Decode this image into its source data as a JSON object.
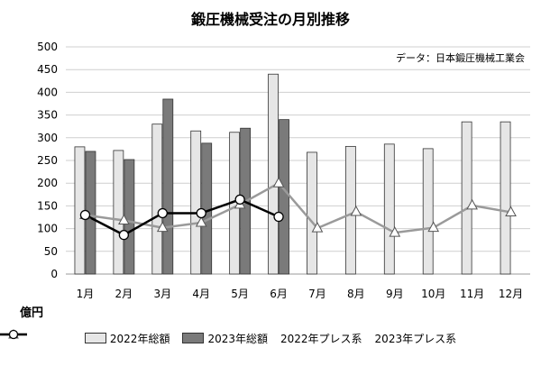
{
  "chart_data": {
    "type": "bar",
    "title": "鍛圧機械受注の月別推移",
    "source_note": "データ：日本鍛圧機械工業会",
    "unit_label": "億円",
    "categories": [
      "1月",
      "2月",
      "3月",
      "4月",
      "5月",
      "6月",
      "7月",
      "8月",
      "9月",
      "10月",
      "11月",
      "12月"
    ],
    "ylim": [
      0,
      500
    ],
    "yticks": [
      0,
      50,
      100,
      150,
      200,
      250,
      300,
      350,
      400,
      450,
      500
    ],
    "ytick_labels": [
      "0",
      "50",
      "100",
      "150",
      "200",
      "250",
      "300",
      "350",
      "400",
      "450",
      "500"
    ],
    "grid": true,
    "legend_position": "bottom",
    "series": [
      {
        "name": "2022年総額",
        "kind": "bar",
        "color": "#e6e6e6",
        "values": [
          280,
          272,
          330,
          315,
          312,
          440,
          268,
          281,
          286,
          276,
          335,
          335
        ]
      },
      {
        "name": "2023年総額",
        "kind": "bar",
        "color": "#7a7a7a",
        "values": [
          270,
          252,
          385,
          288,
          321,
          340,
          null,
          null,
          null,
          null,
          null,
          null
        ]
      },
      {
        "name": "2022年プレス系",
        "kind": "line",
        "color": "#9a9a9a",
        "marker": "triangle",
        "values": [
          130,
          118,
          102,
          113,
          153,
          200,
          101,
          137,
          91,
          102,
          151,
          136
        ]
      },
      {
        "name": "2023年プレス系",
        "kind": "line",
        "color": "#000000",
        "marker": "circle",
        "values": [
          130,
          86,
          134,
          134,
          164,
          126,
          null,
          null,
          null,
          null,
          null,
          null
        ]
      }
    ]
  }
}
